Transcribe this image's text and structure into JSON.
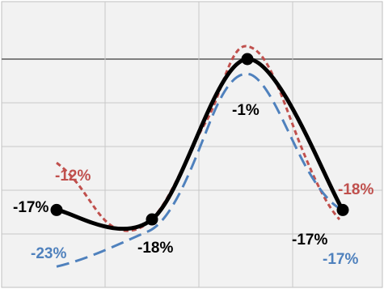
{
  "chart_data": {
    "type": "line",
    "title": "",
    "xlabel": "",
    "ylabel": "",
    "grid": true,
    "x": [
      1,
      2,
      3,
      4
    ],
    "series": [
      {
        "name": "",
        "style": "solid",
        "color": "#000000",
        "markers": true,
        "points": [
          {
            "x": 1,
            "y": -17,
            "label": "-17%"
          },
          {
            "x": 2,
            "y": -18,
            "label": "-18%"
          },
          {
            "x": 3,
            "y": -1,
            "label": "-1%"
          },
          {
            "x": 4,
            "y": -17,
            "label": "-17%"
          }
        ]
      },
      {
        "name": "",
        "style": "dashed",
        "color": "#c0504d",
        "markers": false,
        "points": [
          {
            "x": 1,
            "y": -12,
            "label": "-12%"
          },
          {
            "x": 4,
            "y": -18,
            "label": "-18%"
          }
        ]
      },
      {
        "name": "",
        "style": "dashed",
        "color": "#4f81bd",
        "markers": false,
        "points": [
          {
            "x": 1,
            "y": -23,
            "label": "-23%"
          },
          {
            "x": 4,
            "y": -17,
            "label": "-17%"
          }
        ]
      }
    ],
    "colors": {
      "grid": "#c8c8c8",
      "axis": "#808080",
      "background": "#f2f2f2"
    }
  }
}
